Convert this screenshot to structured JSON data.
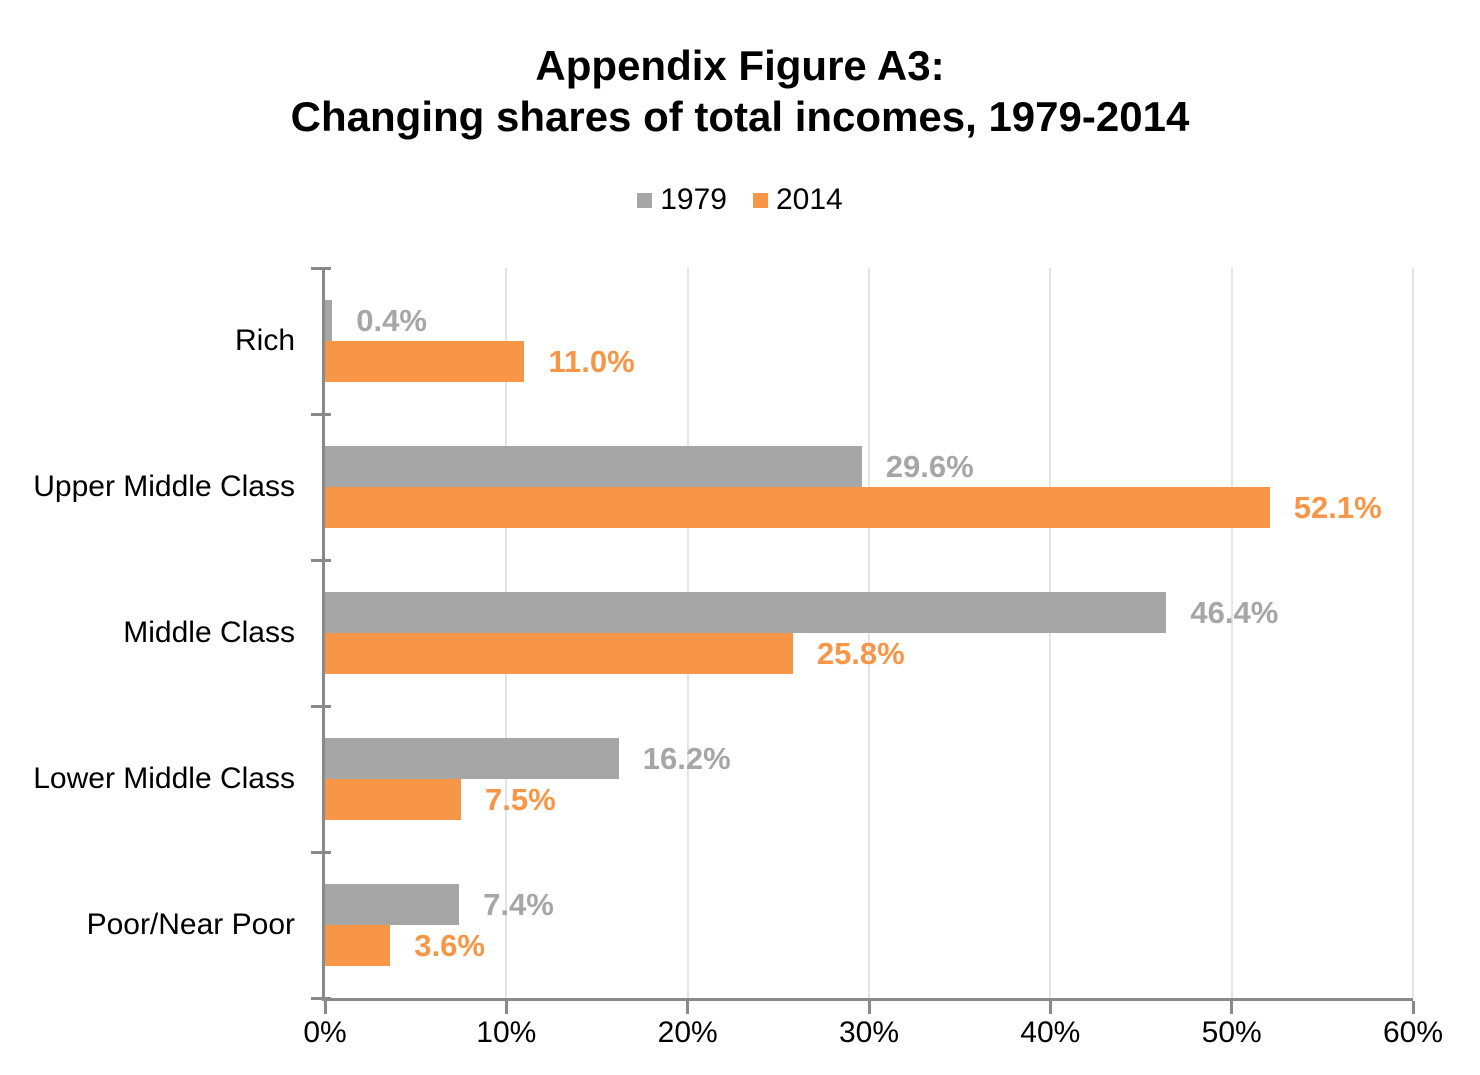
{
  "title": {
    "line1": "Appendix Figure A3:",
    "line2": "Changing shares of total incomes, 1979-2014"
  },
  "legend": [
    {
      "label": "1979",
      "color": "#A6A6A6"
    },
    {
      "label": "2014",
      "color": "#F79646"
    }
  ],
  "chart_data": {
    "type": "bar",
    "orientation": "horizontal",
    "title": "Appendix Figure A3: Changing shares of total incomes, 1979-2014",
    "categories": [
      "Rich",
      "Upper Middle Class",
      "Middle Class",
      "Lower Middle Class",
      "Poor/Near Poor"
    ],
    "series": [
      {
        "name": "1979",
        "color": "#A6A6A6",
        "values": [
          0.4,
          29.6,
          46.4,
          16.2,
          7.4
        ],
        "labels": [
          "0.4%",
          "29.6%",
          "46.4%",
          "16.2%",
          "7.4%"
        ]
      },
      {
        "name": "2014",
        "color": "#F79646",
        "values": [
          11.0,
          52.1,
          25.8,
          7.5,
          3.6
        ],
        "labels": [
          "11.0%",
          "52.1%",
          "25.8%",
          "7.5%",
          "3.6%"
        ]
      }
    ],
    "xlabel": "",
    "ylabel": "",
    "xlim": [
      0,
      60
    ],
    "x_ticks": [
      "0%",
      "10%",
      "20%",
      "30%",
      "40%",
      "50%",
      "60%"
    ],
    "grid": true,
    "legend_position": "top-center",
    "axis_color": "#898989",
    "gridline_color": "#E4E4E4"
  }
}
